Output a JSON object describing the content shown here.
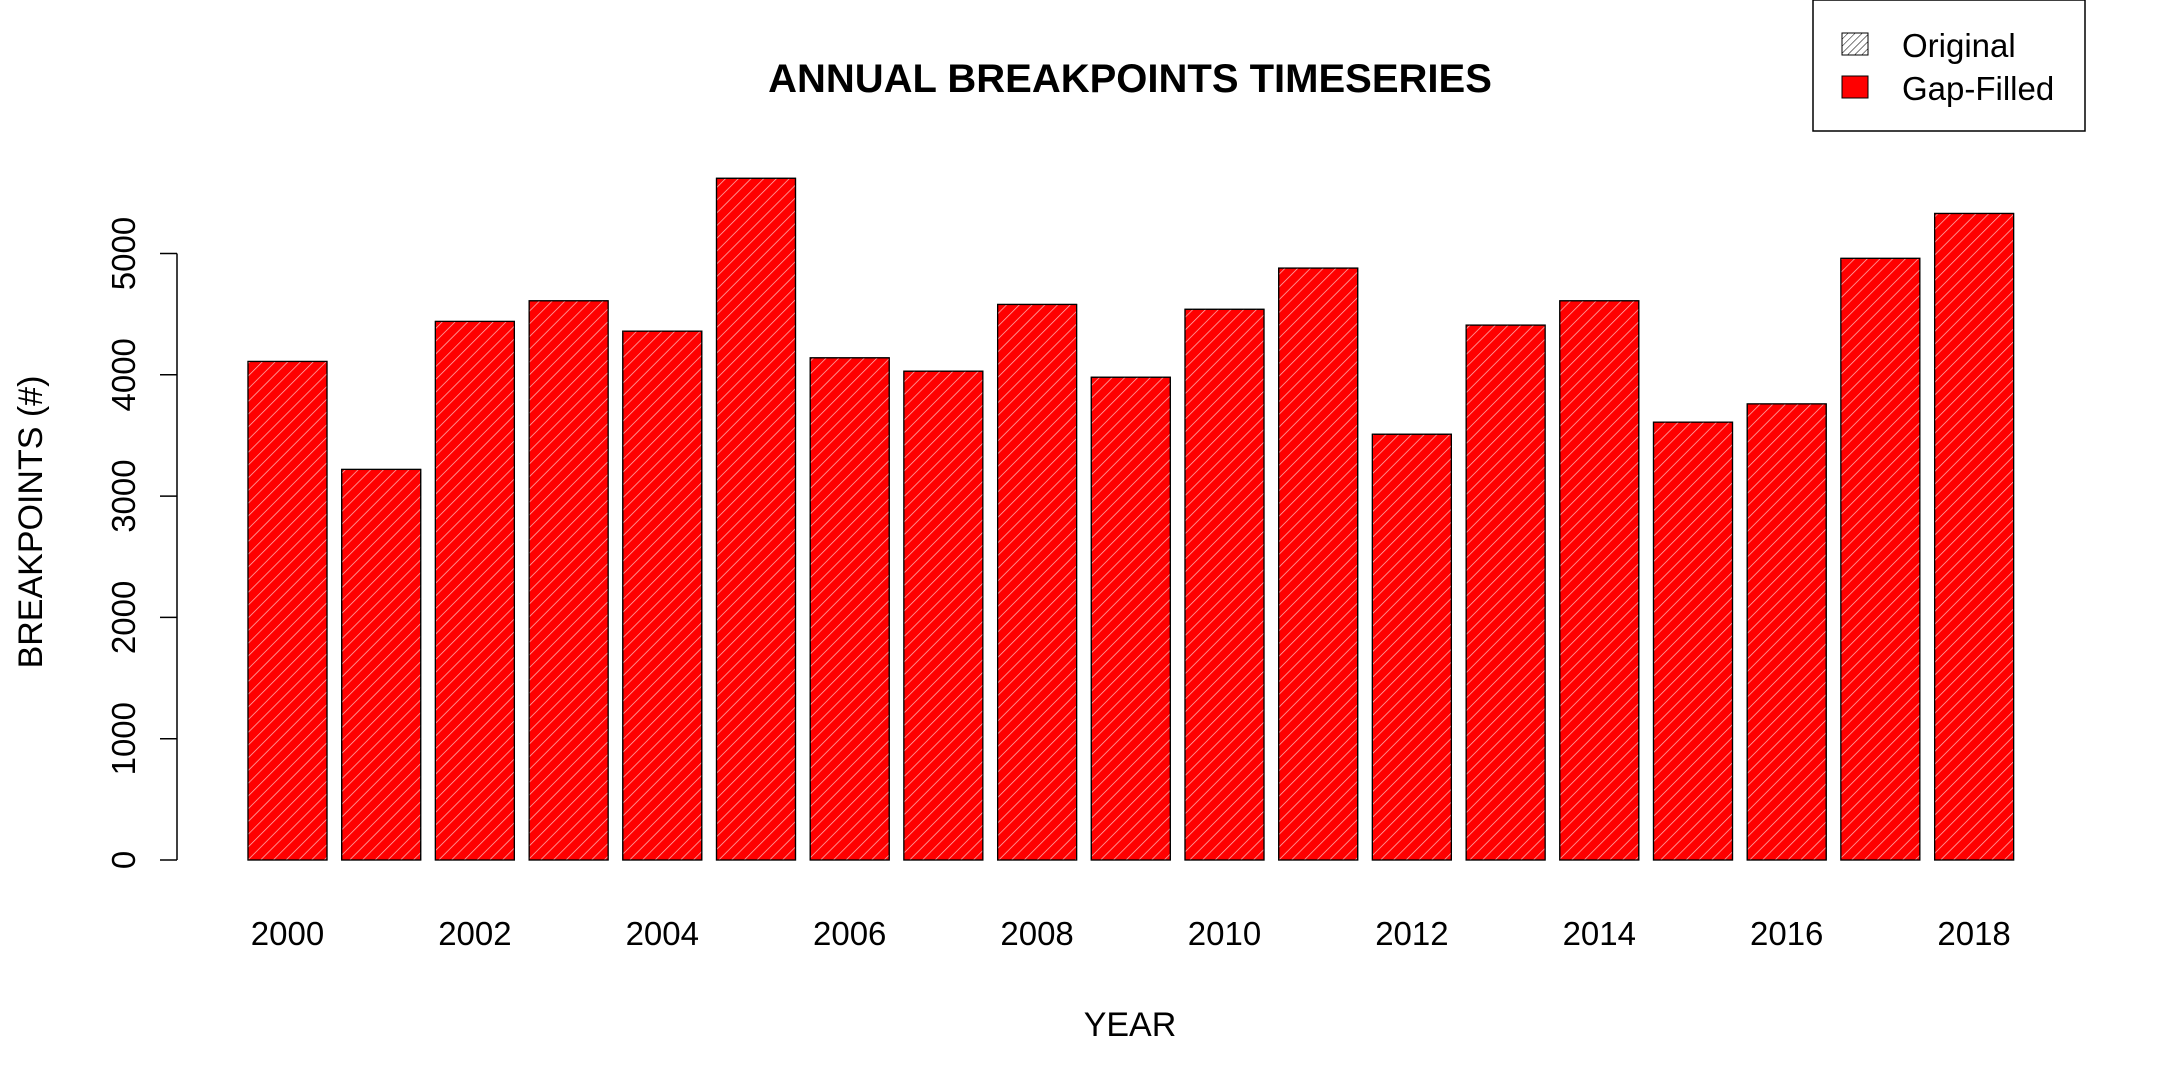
{
  "chart_data": {
    "type": "bar",
    "title": "ANNUAL BREAKPOINTS TIMESERIES",
    "xlabel": "YEAR",
    "ylabel": "BREAKPOINTS (#)",
    "ylim": [
      0,
      5600
    ],
    "yticks": [
      0,
      1000,
      2000,
      3000,
      4000,
      5000
    ],
    "categories": [
      "2000",
      "2001",
      "2002",
      "2003",
      "2004",
      "2005",
      "2006",
      "2007",
      "2008",
      "2009",
      "2010",
      "2011",
      "2012",
      "2013",
      "2014",
      "2015",
      "2016",
      "2017",
      "2018"
    ],
    "x_tick_labels": [
      "2000",
      "2002",
      "2004",
      "2006",
      "2008",
      "2010",
      "2012",
      "2014",
      "2016",
      "2018"
    ],
    "series": [
      {
        "name": "Gap-Filled",
        "color": "#ff0000",
        "values": [
          4110,
          3220,
          4440,
          4610,
          4360,
          5620,
          4140,
          4030,
          4580,
          3980,
          4540,
          4880,
          3510,
          4410,
          4610,
          3610,
          3760,
          4960,
          5330
        ]
      },
      {
        "name": "Original",
        "pattern": "hatched",
        "values": [
          4110,
          3220,
          4440,
          4610,
          4360,
          5620,
          4140,
          4030,
          4580,
          3980,
          4540,
          4880,
          3510,
          4410,
          4610,
          3610,
          3760,
          4960,
          5330
        ]
      }
    ],
    "legend": {
      "position": "top-right",
      "entries": [
        "Original",
        "Gap-Filled"
      ]
    },
    "grid": false
  }
}
